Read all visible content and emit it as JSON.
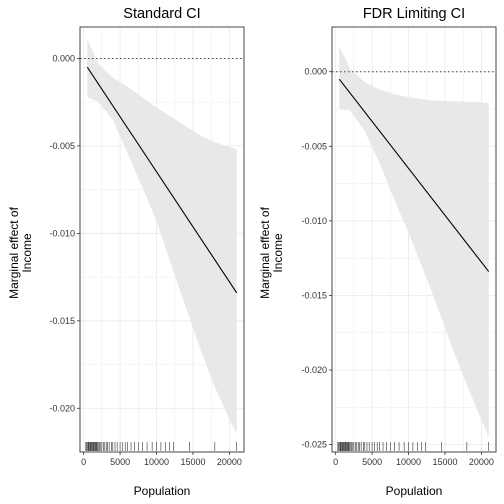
{
  "figure": {
    "panels": [
      {
        "title": "Standard CI",
        "xlabel": "Population",
        "ylabel_line1": "Marginal effect of",
        "ylabel_line2": "Income"
      },
      {
        "title": "FDR Limiting CI",
        "xlabel": "Population",
        "ylabel_line1": "Marginal effect of",
        "ylabel_line2": "Income"
      }
    ]
  },
  "chart_data": [
    {
      "type": "line",
      "title": "Standard CI",
      "xlabel": "Population",
      "ylabel": "Marginal effect of Income",
      "xlim": [
        -500,
        22000
      ],
      "ylim": [
        -0.0225,
        0.0018
      ],
      "xticks": [
        0,
        5000,
        10000,
        15000,
        20000
      ],
      "yticks": [
        0.0,
        -0.005,
        -0.01,
        -0.015,
        -0.02
      ],
      "ytick_labels": [
        "0.000",
        "-0.005",
        "-0.010",
        "-0.015",
        "-0.020"
      ],
      "grid": true,
      "reference_line": {
        "y": 0,
        "style": "dotted"
      },
      "line": {
        "x": [
          500,
          21000
        ],
        "y": [
          -0.0005,
          -0.0134
        ]
      },
      "ribbon": {
        "x": [
          500,
          2000,
          4000,
          6000,
          8000,
          10000,
          13000,
          16000,
          18000,
          21000
        ],
        "upper": [
          0.0011,
          -0.0003,
          -0.0011,
          -0.0016,
          -0.0022,
          -0.0028,
          -0.0036,
          -0.0044,
          -0.0048,
          -0.0052
        ],
        "lower": [
          -0.0022,
          -0.0025,
          -0.0035,
          -0.0054,
          -0.0073,
          -0.0093,
          -0.013,
          -0.0166,
          -0.0188,
          -0.0215
        ]
      },
      "rug_x": [
        300,
        400,
        520,
        650,
        700,
        800,
        900,
        1000,
        1100,
        1200,
        1300,
        1400,
        1500,
        1600,
        1700,
        1800,
        1900,
        2000,
        2200,
        2350,
        2500,
        2700,
        2900,
        3100,
        3300,
        3500,
        3800,
        4000,
        4300,
        4600,
        5000,
        5300,
        5700,
        6000,
        6500,
        7000,
        7500,
        8100,
        8700,
        9400,
        10000,
        10600,
        11200,
        11800,
        12300,
        14500,
        18000,
        21000
      ],
      "colors": {
        "line": "#000000",
        "ribbon": "#e8e8e8",
        "grid": "#ebebeb",
        "border": "#333333"
      }
    },
    {
      "type": "line",
      "title": "FDR Limiting CI",
      "xlabel": "Population",
      "ylabel": "Marginal effect of Income",
      "xlim": [
        -500,
        22000
      ],
      "ylim": [
        -0.0255,
        0.003
      ],
      "xticks": [
        0,
        5000,
        10000,
        15000,
        20000
      ],
      "yticks": [
        0.0,
        -0.005,
        -0.01,
        -0.015,
        -0.02,
        -0.025
      ],
      "ytick_labels": [
        "0.000",
        "-0.005",
        "-0.010",
        "-0.015",
        "-0.020",
        "-0.025"
      ],
      "grid": true,
      "reference_line": {
        "y": 0,
        "style": "dotted"
      },
      "line": {
        "x": [
          500,
          21000
        ],
        "y": [
          -0.0005,
          -0.0134
        ]
      },
      "ribbon": {
        "x": [
          500,
          2000,
          4000,
          6000,
          8000,
          10000,
          13000,
          16000,
          18000,
          21000
        ],
        "upper": [
          0.0017,
          0.0002,
          -0.0007,
          -0.0012,
          -0.0015,
          -0.0017,
          -0.0019,
          -0.002,
          -0.002,
          -0.0021
        ],
        "lower": [
          -0.0025,
          -0.0026,
          -0.004,
          -0.0061,
          -0.0085,
          -0.0108,
          -0.0145,
          -0.0185,
          -0.021,
          -0.0245
        ]
      },
      "rug_x": [
        300,
        400,
        520,
        650,
        700,
        800,
        900,
        1000,
        1100,
        1200,
        1300,
        1400,
        1500,
        1600,
        1700,
        1800,
        1900,
        2000,
        2200,
        2350,
        2500,
        2700,
        2900,
        3100,
        3300,
        3500,
        3800,
        4000,
        4300,
        4600,
        5000,
        5300,
        5700,
        6000,
        6500,
        7000,
        7500,
        8100,
        8700,
        9400,
        10000,
        10600,
        11200,
        11800,
        12300,
        14500,
        18000,
        21000
      ],
      "colors": {
        "line": "#000000",
        "ribbon": "#e8e8e8",
        "grid": "#ebebeb",
        "border": "#333333"
      }
    }
  ]
}
